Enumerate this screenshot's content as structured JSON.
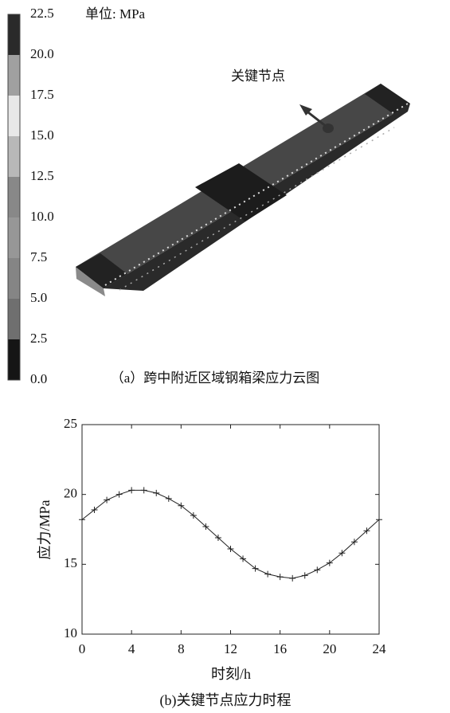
{
  "figure_a": {
    "unit": "单位: MPa",
    "annotation": "关键节点",
    "caption": "（a）跨中附近区域钢箱梁应力云图",
    "colorbar_ticks": [
      {
        "value": 0,
        "label": "0.0"
      },
      2.5,
      {
        "value": 5,
        "label": "5.0"
      },
      7.5,
      {
        "value": 10,
        "label": "10.0"
      },
      12.5,
      {
        "value": 15,
        "label": "15.0"
      },
      17.5,
      {
        "value": 20,
        "label": "20.0"
      },
      22.5
    ],
    "colorbar_colors": [
      "#151515",
      "#6f6f6f",
      "#858585",
      "#979797",
      "#888888",
      "#b8b8b8",
      "#e8e8e8",
      "#a0a0a0",
      "#2a2a2a"
    ]
  },
  "chart_data": {
    "type": "line",
    "xlabel": "时刻/h",
    "ylabel": "应力/MPa",
    "caption": "(b)关键节点应力时程",
    "x": [
      0,
      1,
      2,
      3,
      4,
      5,
      6,
      7,
      8,
      9,
      10,
      11,
      12,
      13,
      14,
      15,
      16,
      17,
      18,
      19,
      20,
      21,
      22,
      23,
      24
    ],
    "series": [
      {
        "color": "#222222",
        "values": [
          18.2,
          18.9,
          19.6,
          20.0,
          20.3,
          20.3,
          20.1,
          19.7,
          19.2,
          18.5,
          17.7,
          16.9,
          16.1,
          15.4,
          14.7,
          14.3,
          14.1,
          14.0,
          14.2,
          14.6,
          15.1,
          15.8,
          16.6,
          17.4,
          18.2
        ]
      }
    ],
    "xlim": [
      0,
      24
    ],
    "xticks": [
      0,
      4,
      8,
      12,
      16,
      20,
      24
    ],
    "ylim": [
      10,
      25
    ],
    "yticks": [
      10,
      15,
      20,
      25
    ]
  }
}
